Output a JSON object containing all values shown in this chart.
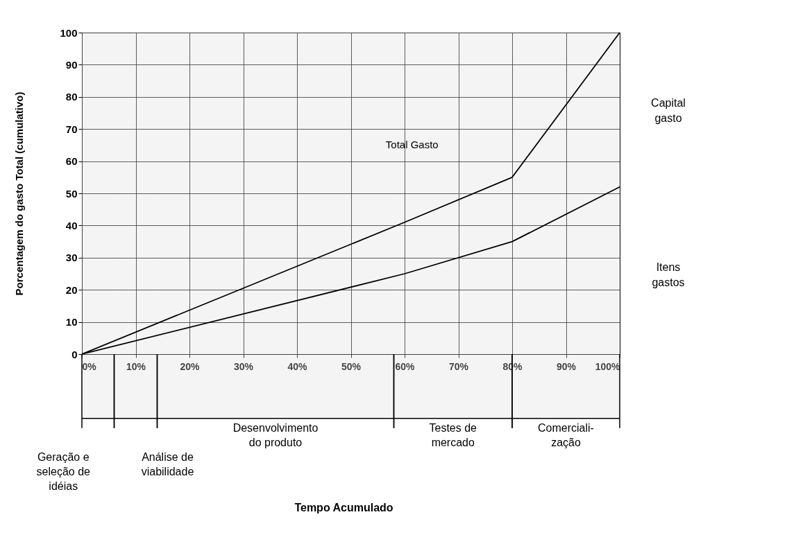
{
  "chart_data": {
    "type": "line",
    "ylabel": "Porcentagem do gasto Total (cumulativo)",
    "x": [
      0,
      60,
      80,
      100
    ],
    "series": [
      {
        "name": "Total Gasto",
        "color": "#000000",
        "values": [
          0,
          41,
          55,
          100
        ]
      },
      {
        "color": "#000000",
        "values": [
          0,
          25,
          35,
          52
        ]
      }
    ],
    "xlim": [
      0,
      100
    ],
    "ylim": [
      0,
      100
    ],
    "xticks": [
      {
        "value": 0,
        "label": "0%"
      },
      {
        "value": 10,
        "label": "10%"
      },
      {
        "value": 20,
        "label": "20%"
      },
      {
        "value": 30,
        "label": "30%"
      },
      {
        "value": 40,
        "label": "40%"
      },
      {
        "value": 50,
        "label": "50%"
      },
      {
        "value": 60,
        "label": "60%"
      },
      {
        "value": 70,
        "label": "70%"
      },
      {
        "value": 80,
        "label": "80%"
      },
      {
        "value": 90,
        "label": "90%"
      },
      {
        "value": 100,
        "label": "100%"
      }
    ],
    "yticks": [
      0,
      10,
      20,
      30,
      40,
      50,
      60,
      70,
      80,
      90,
      100
    ],
    "grid": true,
    "marker": "none",
    "line_style": "solid",
    "bands": [
      {
        "axis": "x",
        "from": 0,
        "to": 6,
        "label": "Geração e\nseleção de\nidéias"
      },
      {
        "axis": "x",
        "from": 6,
        "to": 14,
        "label": "Análise de\nviabilidade"
      },
      {
        "axis": "x",
        "from": 14,
        "to": 58,
        "label": "Desenvolvimento\ndo produto"
      },
      {
        "axis": "x",
        "from": 58,
        "to": 80,
        "label": "Testes de\nmercado"
      },
      {
        "axis": "x",
        "from": 80,
        "to": 100,
        "label": "Comerciali-\nzação"
      }
    ],
    "annotations": [
      "Capital gasto",
      "Itens gastos",
      "Tempo Acumulado"
    ]
  }
}
